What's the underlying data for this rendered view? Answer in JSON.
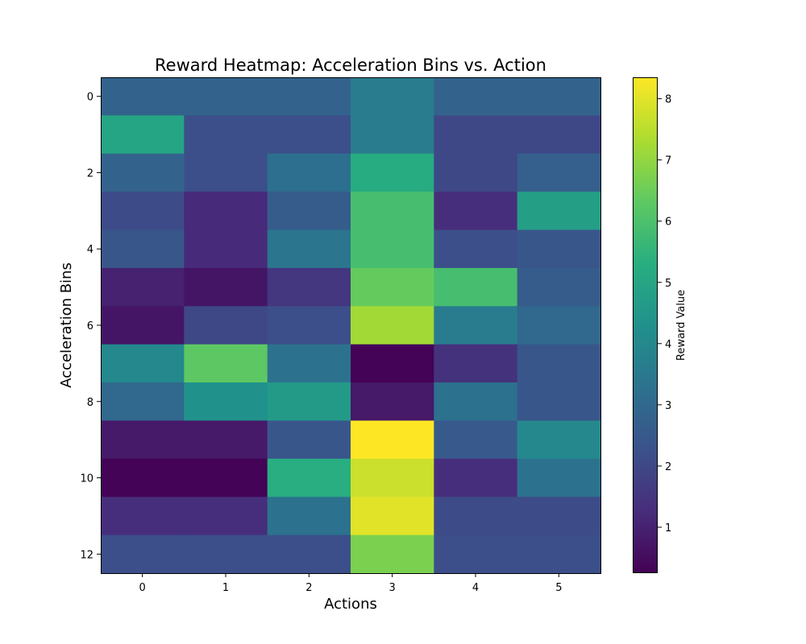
{
  "chart_data": {
    "type": "heatmap",
    "title": "Reward Heatmap: Acceleration Bins vs. Action",
    "xlabel": "Actions",
    "ylabel": "Acceleration Bins",
    "colorbar_label": "Reward Value",
    "colormap": "viridis",
    "x_categories": [
      "0",
      "1",
      "2",
      "3",
      "4",
      "5"
    ],
    "y_categories": [
      "0",
      "1",
      "2",
      "3",
      "4",
      "5",
      "6",
      "7",
      "8",
      "9",
      "10",
      "11",
      "12"
    ],
    "x_tick_labels": [
      "0",
      "1",
      "2",
      "3",
      "4",
      "5"
    ],
    "y_tick_labels": [
      "0",
      "2",
      "4",
      "6",
      "8",
      "10",
      "12"
    ],
    "colorbar_ticks": [
      "1",
      "2",
      "3",
      "4",
      "5",
      "6",
      "7",
      "8"
    ],
    "vmin": 0.25,
    "vmax": 8.35,
    "values": [
      [
        2.8,
        2.8,
        2.8,
        3.6,
        2.8,
        2.8
      ],
      [
        5.0,
        2.2,
        2.2,
        3.6,
        2.0,
        2.0
      ],
      [
        2.8,
        2.2,
        3.2,
        5.2,
        2.0,
        2.7
      ],
      [
        2.1,
        1.2,
        2.6,
        5.9,
        1.3,
        4.8
      ],
      [
        2.4,
        1.2,
        3.4,
        5.9,
        2.2,
        2.4
      ],
      [
        1.0,
        0.7,
        1.5,
        6.4,
        5.9,
        2.6
      ],
      [
        0.7,
        2.0,
        2.2,
        7.2,
        3.6,
        3.0
      ],
      [
        4.0,
        6.3,
        3.3,
        0.3,
        1.4,
        2.4
      ],
      [
        3.0,
        4.3,
        4.6,
        0.8,
        3.3,
        2.4
      ],
      [
        0.8,
        0.8,
        2.4,
        8.35,
        2.5,
        4.0
      ],
      [
        0.3,
        0.3,
        5.3,
        7.7,
        1.3,
        3.3
      ],
      [
        1.3,
        1.3,
        3.3,
        8.0,
        2.1,
        2.1
      ],
      [
        2.2,
        2.2,
        2.2,
        6.7,
        2.2,
        2.2
      ]
    ]
  }
}
